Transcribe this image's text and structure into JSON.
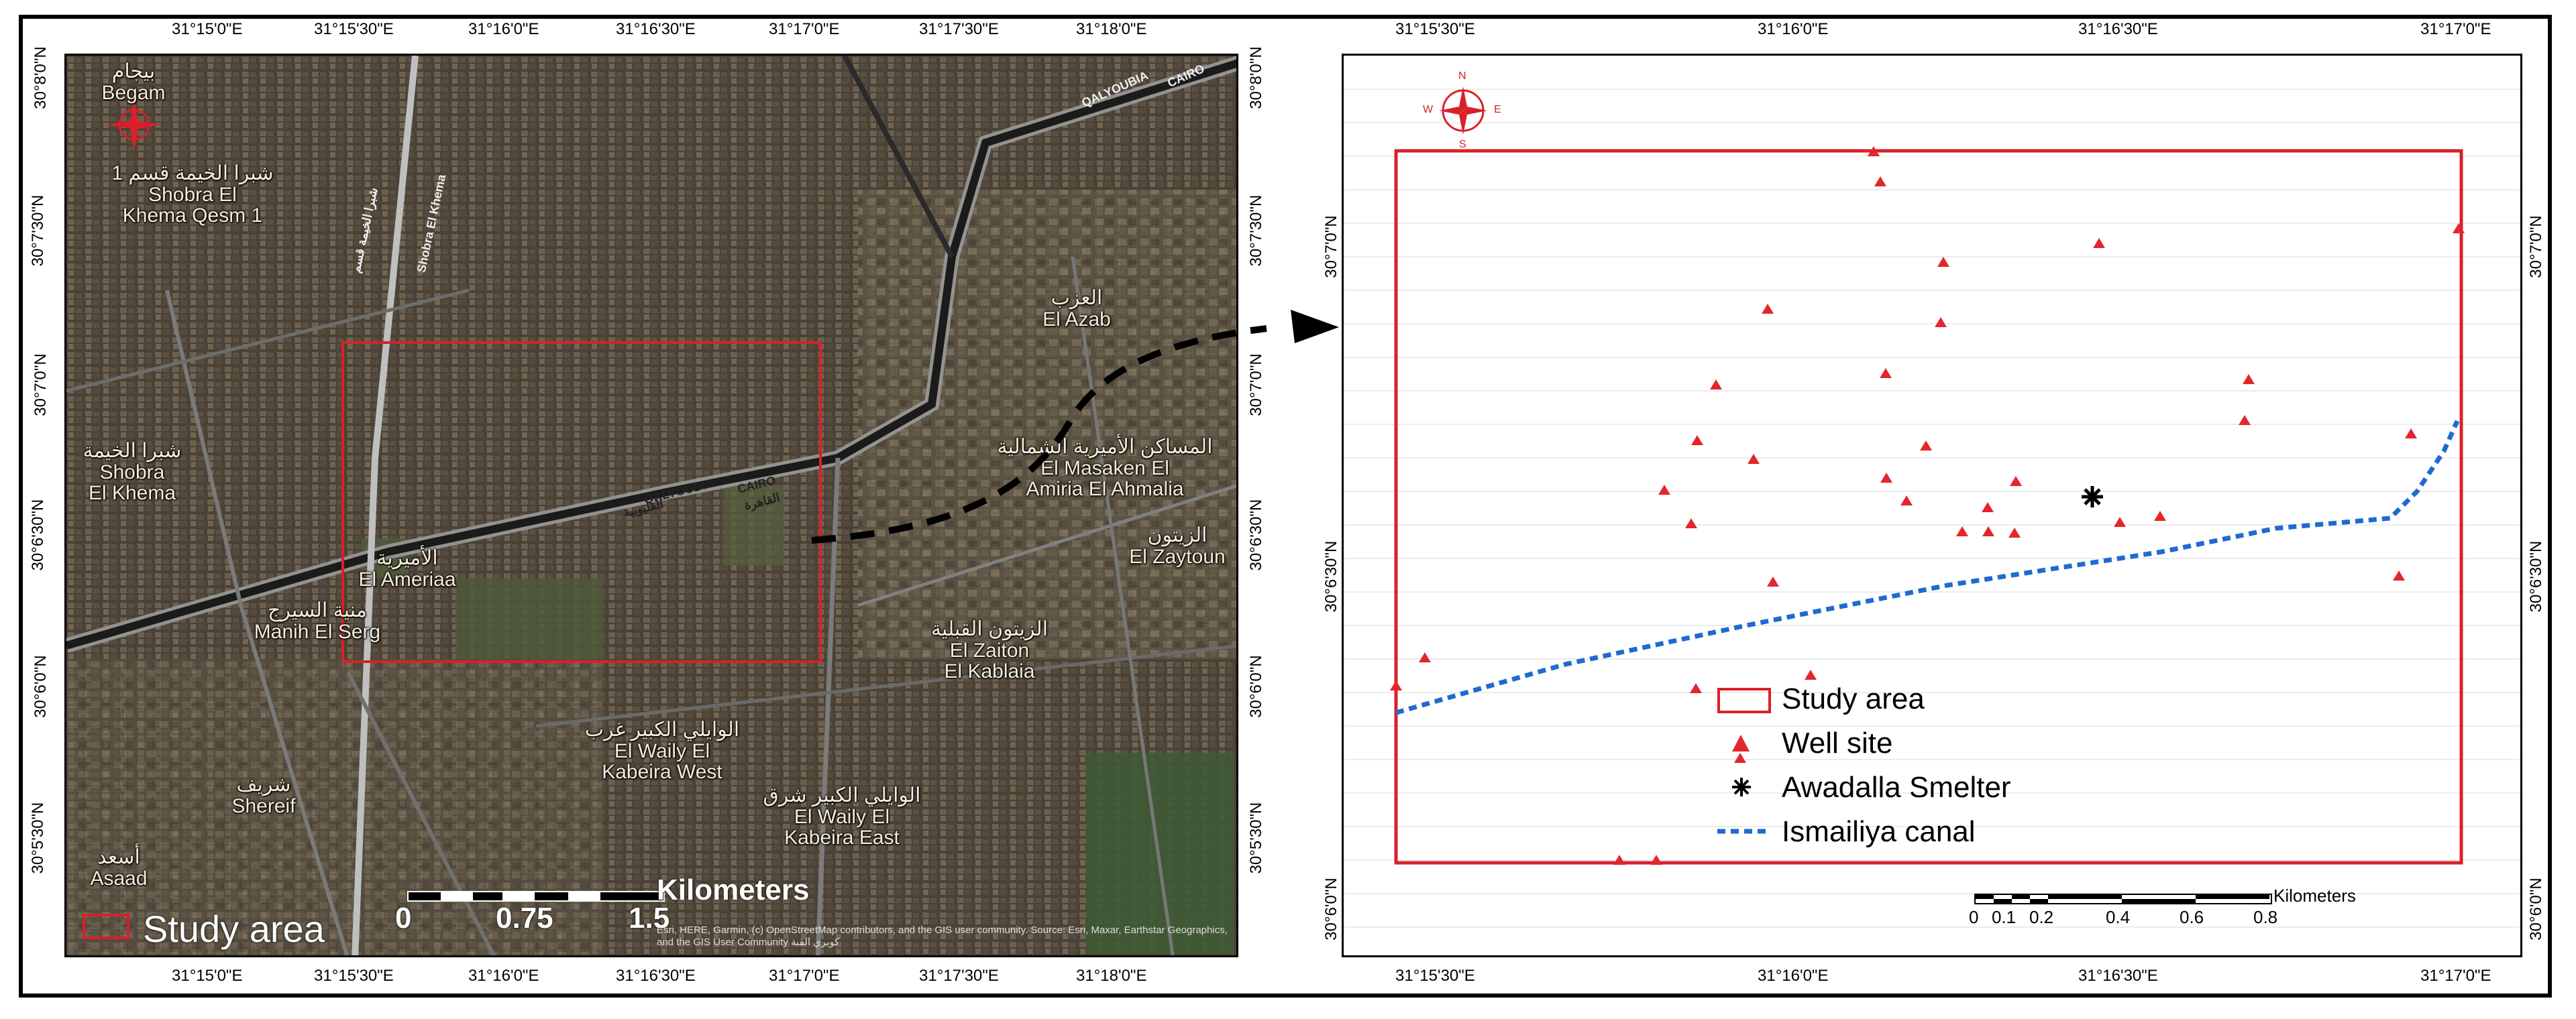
{
  "left_map": {
    "lon_ticks": [
      "31°15'0\"E",
      "31°15'30\"E",
      "31°16'0\"E",
      "31°16'30\"E",
      "31°17'0\"E",
      "31°17'30\"E",
      "31°18'0\"E"
    ],
    "lat_ticks": [
      "30°8'0\"N",
      "30°7'30\"N",
      "30°7'0\"N",
      "30°6'30\"N",
      "30°6'0\"N",
      "30°5'30\"N"
    ],
    "place_labels": [
      {
        "text": "بيجام\nBegam"
      },
      {
        "text": "شبرا الخيمة قسم 1\nShobra El\nKhema Qesm 1"
      },
      {
        "text": "العزب\nEl Azab"
      },
      {
        "text": "شبرا الخيمة\nShobra\nEl Khema"
      },
      {
        "text": "المساكن الأميرية الشمالية\nEl Masaken El\nAmiria El Ahmalia"
      },
      {
        "text": "الزيتون\nEl Zaytoun"
      },
      {
        "text": "الأميرية\nEl Ameriaa"
      },
      {
        "text": "منية السيرج\nManih El Serg"
      },
      {
        "text": "الزيتون القبلية\nEl Zaiton\nEl Kablaia"
      },
      {
        "text": "الوايلي الكبير غرب\nEl Waily El\nKabeira West"
      },
      {
        "text": "الوايلي الكبير شرق\nEl Waily El\nKabeira East"
      },
      {
        "text": "شريف\nShereif"
      },
      {
        "text": "أسعد\nAsaad"
      }
    ],
    "road_labels": [
      "Shobra El Khema",
      "شبرا الخيمة قسم",
      "QALYOUBIA",
      "CAIRO",
      "القليوبية",
      "القاهرة",
      "QALYOUBIA",
      "CAIRO"
    ],
    "legend_label": "Study area",
    "scale_labels": [
      "0",
      "0.75",
      "1.5"
    ],
    "scale_unit": "Kilometers",
    "credit": "Esri, HERE, Garmin, (c) OpenStreetMap contributors, and the GIS user community. Source: Esri, Maxar, Earthstar Geographics, and the GIS User Community",
    "credit_arabic": "كوبري القبة"
  },
  "right_map": {
    "lon_ticks": [
      "31°15'30\"E",
      "31°16'0\"E",
      "31°16'30\"E",
      "31°17'0\"E"
    ],
    "lat_ticks": [
      "30°7'0\"N",
      "30°6'30\"N",
      "30°6'0\"N"
    ],
    "legend": [
      {
        "label": "Study area",
        "symbol": "red-rectangle",
        "color": "#d9202a"
      },
      {
        "label": "Well site",
        "symbol": "red-triangle",
        "color": "#e3262d"
      },
      {
        "label": "Awadalla Smelter",
        "symbol": "black-asterisk",
        "color": "#000000"
      },
      {
        "label": "Ismailiya canal",
        "symbol": "blue-dashed-line",
        "color": "#1e6bd0"
      }
    ],
    "scale_labels": [
      "0",
      "0.1",
      "0.2",
      "0.4",
      "0.6",
      "0.8"
    ],
    "scale_unit": "Kilometers"
  },
  "compass": {
    "n": "N",
    "s": "S",
    "e": "E",
    "w": "W"
  },
  "colors": {
    "study_area": "#d9202a",
    "well": "#e3262d",
    "canal": "#1e6bd0",
    "arrow": "#000000"
  }
}
